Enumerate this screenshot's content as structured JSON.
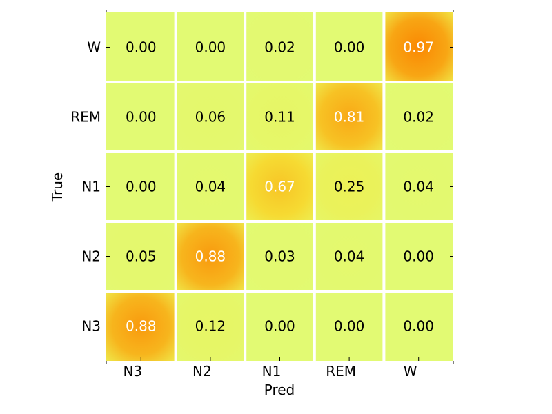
{
  "chart_data": {
    "type": "heatmap",
    "title": "",
    "xlabel": "Pred",
    "ylabel": "True",
    "x_categories": [
      "N3",
      "N2",
      "N1",
      "REM",
      "W"
    ],
    "y_categories": [
      "W",
      "REM",
      "N1",
      "N2",
      "N3"
    ],
    "values": [
      [
        0.0,
        0.0,
        0.02,
        0.0,
        0.97
      ],
      [
        0.0,
        0.06,
        0.11,
        0.81,
        0.02
      ],
      [
        0.0,
        0.04,
        0.67,
        0.25,
        0.04
      ],
      [
        0.05,
        0.88,
        0.03,
        0.04,
        0.0
      ],
      [
        0.88,
        0.12,
        0.0,
        0.0,
        0.0
      ]
    ],
    "value_format": "0.00",
    "colormap": "light-yellow-to-orange",
    "colors": {
      "low": "#e2fa73",
      "mid": "#f5e83a",
      "high": "#fa8200",
      "grid": "#ffffff"
    },
    "grid": true
  }
}
